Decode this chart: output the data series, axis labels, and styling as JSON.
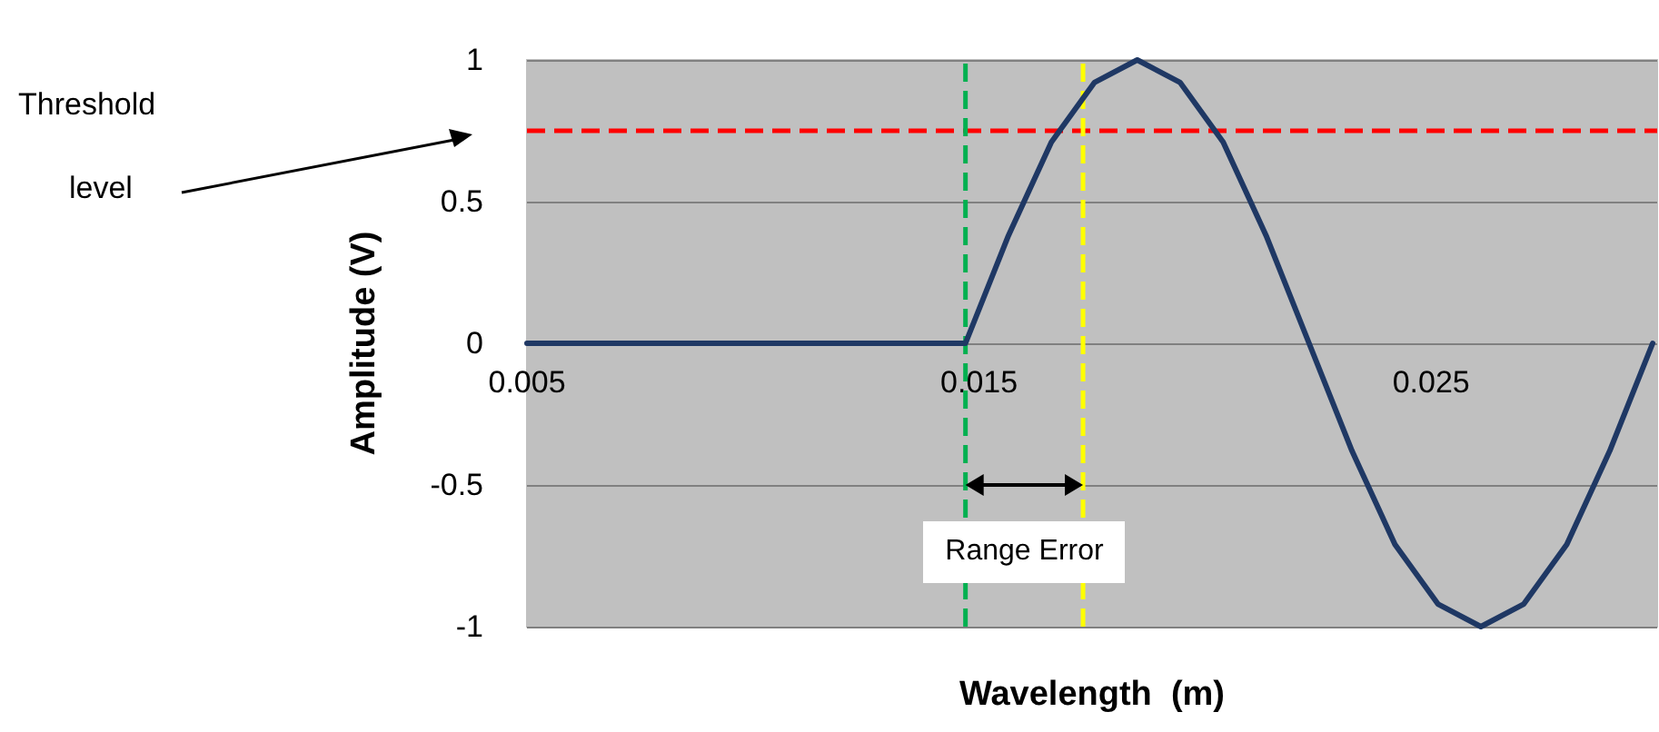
{
  "chart_data": {
    "type": "line",
    "xlabel": "Wavelength  (m)",
    "ylabel": "Amplitude (V)",
    "x": [
      0.005,
      0.0147,
      0.01565,
      0.0166,
      0.01755,
      0.0185,
      0.01945,
      0.0204,
      0.02135,
      0.0223,
      0.02325,
      0.0242,
      0.02515,
      0.0261,
      0.02705,
      0.028,
      0.02895,
      0.0299
    ],
    "values": [
      0,
      0,
      0.38,
      0.71,
      0.92,
      1,
      0.92,
      0.71,
      0.38,
      0,
      -0.38,
      -0.71,
      -0.92,
      -1,
      -0.92,
      -0.71,
      -0.38,
      0
    ],
    "color": "#1f3864",
    "marker": "none",
    "line_style": "solid",
    "xlim": [
      0.005,
      0.03
    ],
    "xticks": [
      0.005,
      0.015,
      0.025
    ],
    "ylim": [
      -1,
      1
    ],
    "yticks": [
      -1,
      -0.5,
      0,
      0.5,
      1
    ],
    "grid": "y",
    "ref_lines": [
      {
        "axis": "y",
        "value": 0.75,
        "label": "Threshold level",
        "color": "#ff0000",
        "line_style": "dashed"
      },
      {
        "axis": "x",
        "value": 0.0147,
        "color": "#00b050",
        "line_style": "dashed"
      },
      {
        "axis": "x",
        "value": 0.0173,
        "color": "#ffff00",
        "line_style": "dashed"
      }
    ],
    "annotations": [
      "Range Error"
    ]
  }
}
